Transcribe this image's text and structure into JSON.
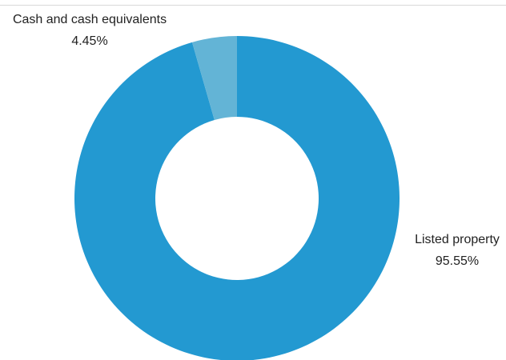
{
  "chart_data": {
    "type": "pie",
    "variant": "donut",
    "title": "",
    "slices": [
      {
        "label": "Listed property",
        "value": 95.55,
        "value_label": "95.55%",
        "color": "#2399d1"
      },
      {
        "label": "Cash and cash equivalents",
        "value": 4.45,
        "value_label": "4.45%",
        "color": "#63b4d6"
      }
    ],
    "legend": "none"
  }
}
